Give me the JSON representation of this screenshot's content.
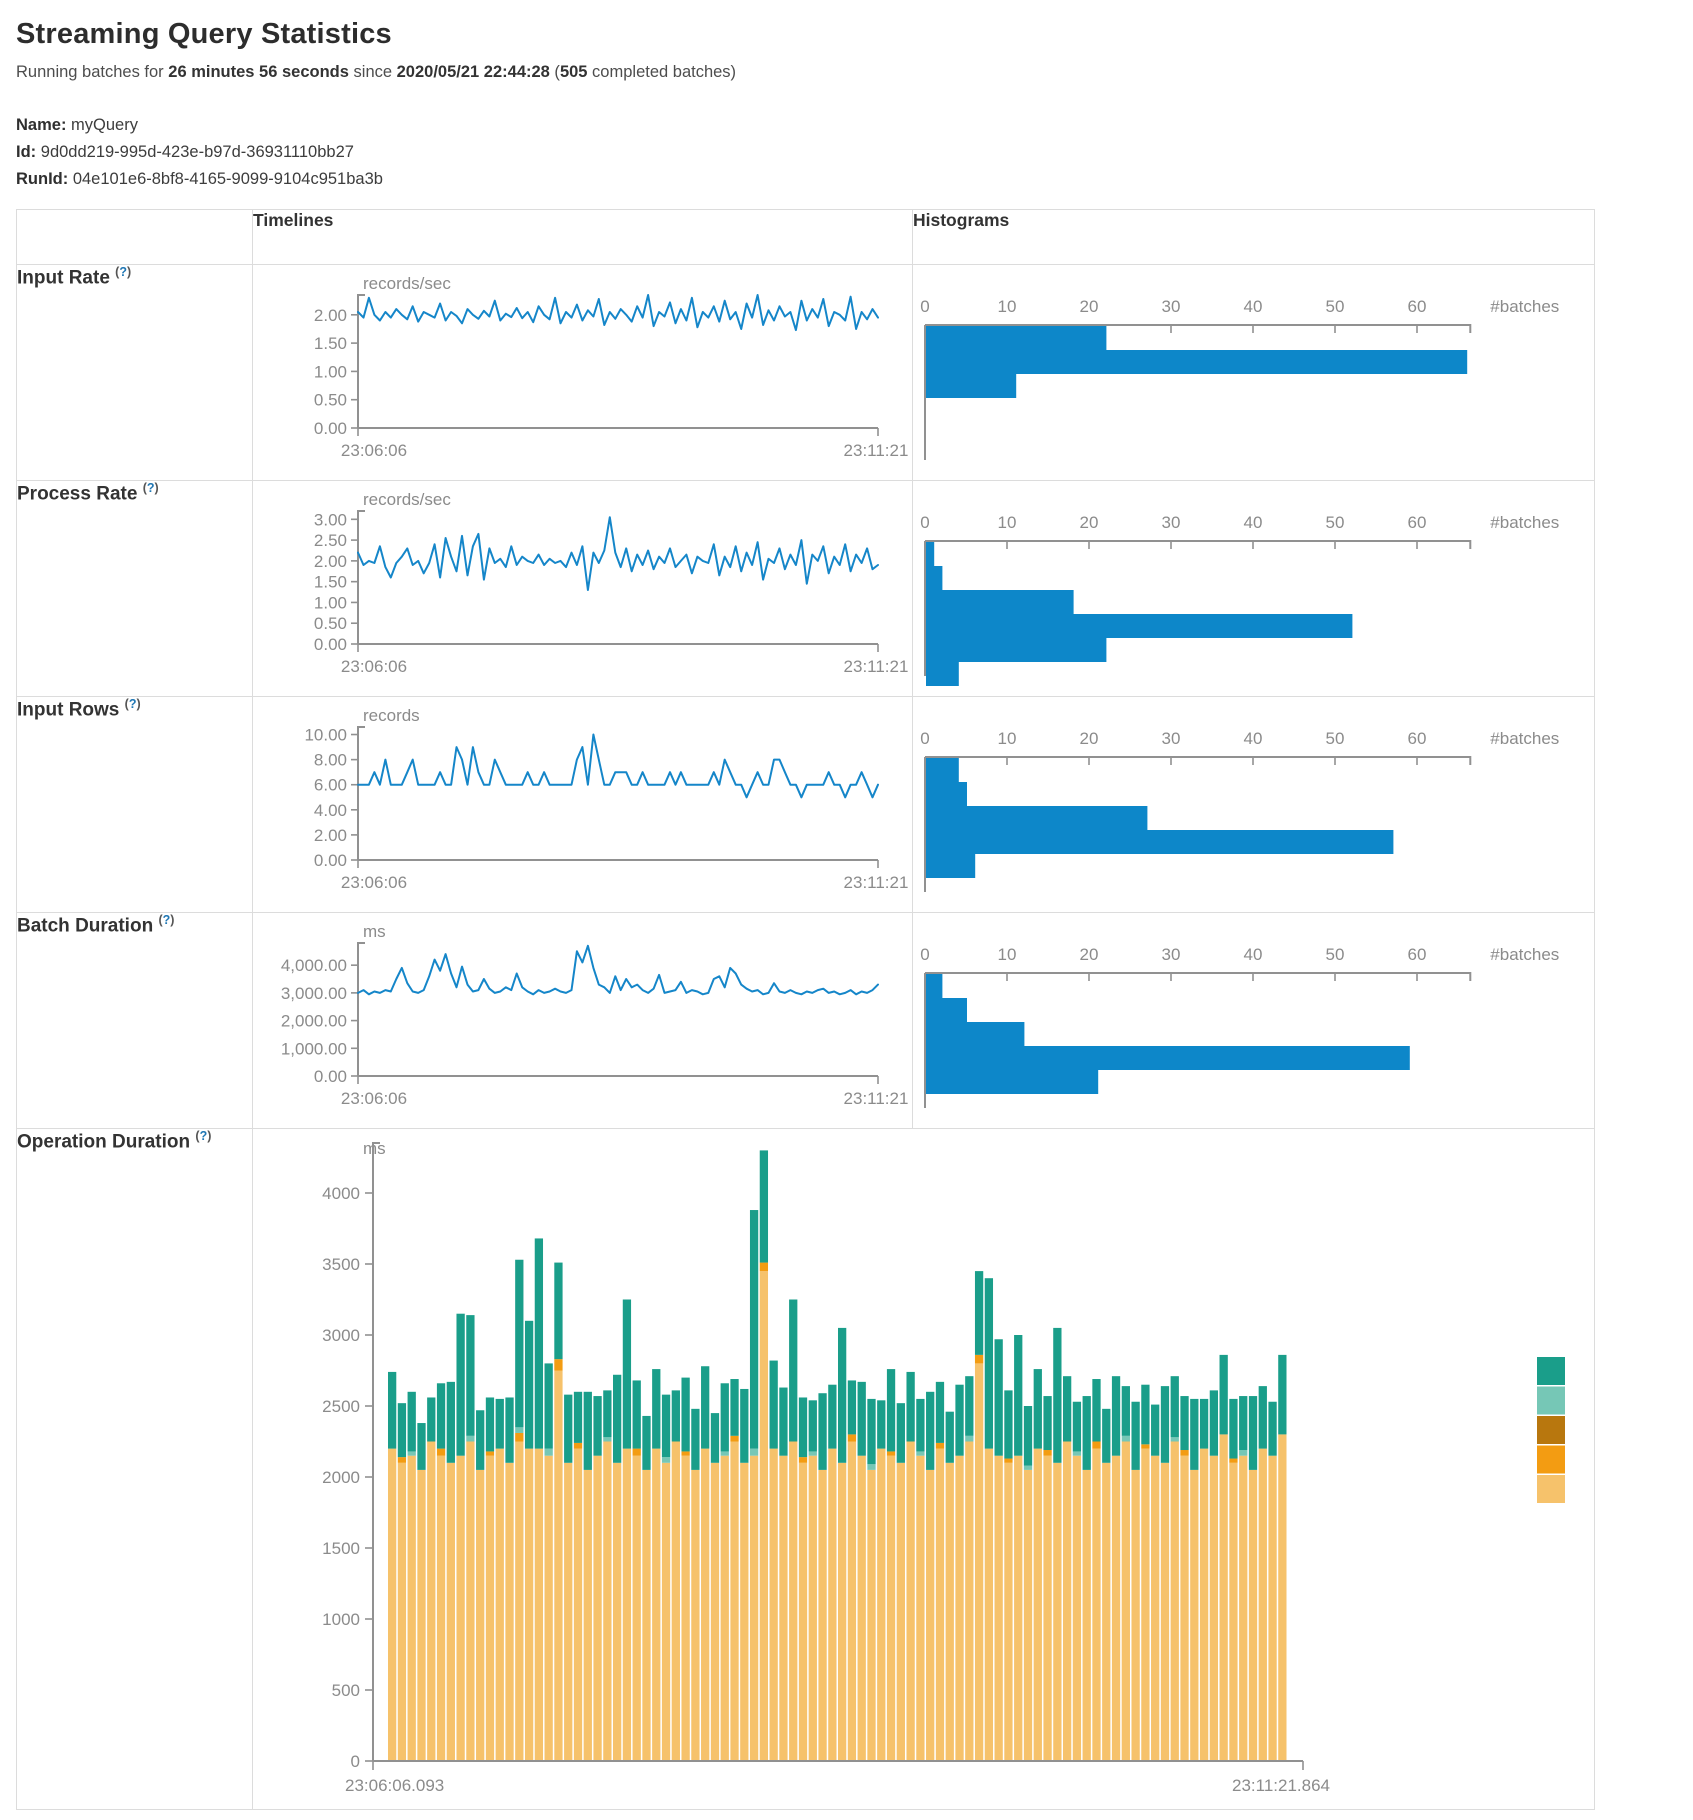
{
  "page": {
    "title": "Streaming Query Statistics",
    "subtitle": {
      "prefix": "Running batches for ",
      "duration": "26 minutes 56 seconds",
      "middle": " since ",
      "since": "2020/05/21 22:44:28",
      "open": " (",
      "batches": "505",
      "suffix": " completed batches)"
    },
    "meta": {
      "name_label": "Name:",
      "name": "myQuery",
      "id_label": "Id:",
      "id": "9d0dd219-995d-423e-b97d-36931110bb27",
      "runid_label": "RunId:",
      "runid": "04e101e6-8bf8-4165-9099-9104c951ba3b"
    }
  },
  "table": {
    "header": {
      "timelines": "Timelines",
      "histograms": "Histograms"
    },
    "help": {
      "open": "(",
      "mark": "?",
      "close": ")"
    },
    "rows": [
      {
        "label": "Input Rate"
      },
      {
        "label": "Process Rate"
      },
      {
        "label": "Input Rows"
      },
      {
        "label": "Batch Duration"
      },
      {
        "label": "Operation Duration"
      }
    ]
  },
  "colors": {
    "line": "#1586c9",
    "bar": "#0d87c9",
    "axis": "#919191",
    "tick_text": "#8b8b8b"
  },
  "chart_data": [
    {
      "id": "input-rate-timeline",
      "type": "line",
      "unit": "records/sec",
      "x_start": "23:06:06",
      "x_end": "23:11:21",
      "ymax": 2.35,
      "yticks": [
        [
          0,
          "0.00"
        ],
        [
          0.5,
          "0.50"
        ],
        [
          1,
          "1.00"
        ],
        [
          1.5,
          "1.50"
        ],
        [
          2,
          "2.00"
        ]
      ],
      "values": [
        2.05,
        1.95,
        2.3,
        2.0,
        1.9,
        2.05,
        1.95,
        2.1,
        2.0,
        1.92,
        2.15,
        1.88,
        2.05,
        2.0,
        1.95,
        2.2,
        1.9,
        2.05,
        1.98,
        1.85,
        2.1,
        2.0,
        1.93,
        2.07,
        1.97,
        2.25,
        1.9,
        2.02,
        1.96,
        2.12,
        1.94,
        2.05,
        1.87,
        2.15,
        2.0,
        1.92,
        2.3,
        1.85,
        2.05,
        1.95,
        2.18,
        1.9,
        2.08,
        1.97,
        2.28,
        1.82,
        2.05,
        1.93,
        2.1,
        2.0,
        1.88,
        2.15,
        1.95,
        2.35,
        1.8,
        2.05,
        1.97,
        2.22,
        1.85,
        2.1,
        1.9,
        2.3,
        1.78,
        2.05,
        1.95,
        2.15,
        1.88,
        2.25,
        1.92,
        2.05,
        1.75,
        2.2,
        1.95,
        2.35,
        1.82,
        2.08,
        1.9,
        2.15,
        1.97,
        2.05,
        1.73,
        2.25,
        1.9,
        2.1,
        1.95,
        2.28,
        1.8,
        2.05,
        2.0,
        1.9,
        2.32,
        1.75,
        2.05,
        1.92,
        2.1,
        1.95
      ]
    },
    {
      "id": "input-rate-histogram",
      "type": "hbar",
      "axis_label": "#batches",
      "xticks": [
        [
          0,
          "0"
        ],
        [
          10,
          "10"
        ],
        [
          20,
          "20"
        ],
        [
          30,
          "30"
        ],
        [
          40,
          "40"
        ],
        [
          50,
          "50"
        ],
        [
          60,
          "60"
        ]
      ],
      "bins": [
        22,
        66,
        11
      ]
    },
    {
      "id": "process-rate-timeline",
      "type": "line",
      "unit": "records/sec",
      "x_start": "23:06:06",
      "x_end": "23:11:21",
      "ymax": 3.2,
      "yticks": [
        [
          0,
          "0.00"
        ],
        [
          0.5,
          "0.50"
        ],
        [
          1,
          "1.00"
        ],
        [
          1.5,
          "1.50"
        ],
        [
          2,
          "2.00"
        ],
        [
          2.5,
          "2.50"
        ],
        [
          3,
          "3.00"
        ]
      ],
      "values": [
        2.2,
        1.9,
        2.0,
        1.95,
        2.35,
        1.85,
        1.6,
        1.95,
        2.1,
        2.3,
        1.9,
        2.0,
        1.7,
        1.95,
        2.4,
        1.6,
        2.55,
        2.1,
        1.75,
        2.6,
        1.65,
        2.35,
        2.65,
        1.55,
        2.3,
        1.95,
        2.05,
        1.85,
        2.35,
        1.9,
        2.1,
        2.0,
        1.95,
        2.15,
        1.9,
        2.05,
        1.95,
        2.0,
        1.85,
        2.2,
        1.9,
        2.35,
        1.3,
        2.2,
        1.95,
        2.25,
        3.05,
        2.2,
        1.85,
        2.3,
        1.75,
        2.15,
        1.9,
        2.25,
        1.8,
        2.1,
        1.95,
        2.3,
        1.85,
        2.0,
        2.15,
        1.7,
        2.1,
        2.0,
        1.95,
        2.4,
        1.65,
        2.1,
        1.85,
        2.35,
        1.75,
        2.2,
        1.9,
        2.45,
        1.55,
        2.05,
        1.95,
        2.3,
        1.8,
        2.15,
        1.9,
        2.5,
        1.45,
        2.15,
        2.0,
        2.35,
        1.7,
        2.1,
        1.9,
        2.4,
        1.75,
        2.15,
        1.95,
        2.3,
        1.8,
        1.9
      ]
    },
    {
      "id": "process-rate-histogram",
      "type": "hbar",
      "axis_label": "#batches",
      "xticks": [
        [
          0,
          "0"
        ],
        [
          10,
          "10"
        ],
        [
          20,
          "20"
        ],
        [
          30,
          "30"
        ],
        [
          40,
          "40"
        ],
        [
          50,
          "50"
        ],
        [
          60,
          "60"
        ]
      ],
      "bins": [
        1,
        2,
        18,
        52,
        22,
        4
      ]
    },
    {
      "id": "input-rows-timeline",
      "type": "line",
      "unit": "records",
      "x_start": "23:06:06",
      "x_end": "23:11:21",
      "ymax": 10.6,
      "yticks": [
        [
          0,
          "0.00"
        ],
        [
          2,
          "2.00"
        ],
        [
          4,
          "4.00"
        ],
        [
          6,
          "6.00"
        ],
        [
          8,
          "8.00"
        ],
        [
          10,
          "10.00"
        ]
      ],
      "values": [
        6,
        6,
        6,
        7,
        6,
        8,
        6,
        6,
        6,
        7,
        8,
        6,
        6,
        6,
        6,
        7,
        6,
        6,
        9,
        8,
        6,
        9,
        7,
        6,
        6,
        8,
        7,
        6,
        6,
        6,
        6,
        7,
        6,
        6,
        7,
        6,
        6,
        6,
        6,
        6,
        8,
        9,
        6,
        10,
        8,
        6,
        6,
        7,
        7,
        7,
        6,
        6,
        7,
        6,
        6,
        6,
        6,
        7,
        6,
        7,
        6,
        6,
        6,
        6,
        6,
        7,
        6,
        8,
        7,
        6,
        6,
        5,
        6,
        7,
        6,
        6,
        8,
        8,
        7,
        6,
        6,
        5,
        6,
        6,
        6,
        6,
        7,
        6,
        6,
        5,
        6,
        6,
        7,
        6,
        5,
        6
      ]
    },
    {
      "id": "input-rows-histogram",
      "type": "hbar",
      "axis_label": "#batches",
      "xticks": [
        [
          0,
          "0"
        ],
        [
          10,
          "10"
        ],
        [
          20,
          "20"
        ],
        [
          30,
          "30"
        ],
        [
          40,
          "40"
        ],
        [
          50,
          "50"
        ],
        [
          60,
          "60"
        ]
      ],
      "bins": [
        4,
        5,
        27,
        57,
        6
      ]
    },
    {
      "id": "batch-duration-timeline",
      "type": "line",
      "unit": "ms",
      "x_start": "23:06:06",
      "x_end": "23:11:21",
      "ymax": 4800,
      "yticks": [
        [
          0,
          "0.00"
        ],
        [
          1000,
          "1,000.00"
        ],
        [
          2000,
          "2,000.00"
        ],
        [
          3000,
          "3,000.00"
        ],
        [
          4000,
          "4,000.00"
        ]
      ],
      "values": [
        3000,
        3100,
        2950,
        3050,
        3000,
        3100,
        3050,
        3500,
        3900,
        3350,
        3050,
        3000,
        3100,
        3600,
        4200,
        3800,
        4400,
        3700,
        3200,
        3950,
        3300,
        3050,
        3100,
        3500,
        3150,
        3000,
        3050,
        3200,
        3100,
        3700,
        3200,
        3050,
        2950,
        3100,
        3000,
        3050,
        3150,
        3050,
        3000,
        3100,
        4500,
        4100,
        4700,
        3900,
        3300,
        3200,
        3000,
        3600,
        3100,
        3500,
        3200,
        3300,
        3100,
        3000,
        3150,
        3650,
        3000,
        3050,
        3100,
        3400,
        3000,
        3100,
        3050,
        2950,
        3000,
        3500,
        3600,
        3200,
        3900,
        3700,
        3300,
        3150,
        3050,
        3100,
        2950,
        3000,
        3350,
        3050,
        3000,
        3100,
        3000,
        2950,
        3050,
        3000,
        3100,
        3150,
        3000,
        3050,
        2950,
        3000,
        3100,
        2950,
        3050,
        3000,
        3100,
        3300
      ]
    },
    {
      "id": "batch-duration-histogram",
      "type": "hbar",
      "axis_label": "#batches",
      "xticks": [
        [
          0,
          "0"
        ],
        [
          10,
          "10"
        ],
        [
          20,
          "20"
        ],
        [
          30,
          "30"
        ],
        [
          40,
          "40"
        ],
        [
          50,
          "50"
        ],
        [
          60,
          "60"
        ]
      ],
      "bins": [
        2,
        5,
        12,
        59,
        21
      ]
    },
    {
      "id": "operation-duration-stacked",
      "type": "stacked",
      "unit": "ms",
      "x_start": "23:06:06.093",
      "x_end": "23:11:21.864",
      "yticks": [
        [
          0,
          "0"
        ],
        [
          500,
          "500"
        ],
        [
          1000,
          "1000"
        ],
        [
          1500,
          "1500"
        ],
        [
          2000,
          "2000"
        ],
        [
          2500,
          "2500"
        ],
        [
          3000,
          "3000"
        ],
        [
          3500,
          "3500"
        ],
        [
          4000,
          "4000"
        ]
      ],
      "series_colors": [
        "#f6c26b",
        "#f39c12",
        "#b8770e",
        "#76c7b6",
        "#1a9e8a"
      ],
      "legend_colors": [
        "#1a9e8a",
        "#76c7b6",
        "#b8770e",
        "#f39c12",
        "#f6c26b"
      ],
      "bars": [
        [
          2200,
          0,
          0,
          0,
          540
        ],
        [
          2100,
          40,
          0,
          0,
          380
        ],
        [
          2150,
          0,
          0,
          30,
          420
        ],
        [
          2050,
          0,
          0,
          0,
          330
        ],
        [
          2250,
          0,
          0,
          0,
          310
        ],
        [
          2150,
          50,
          0,
          0,
          460
        ],
        [
          2100,
          0,
          0,
          0,
          570
        ],
        [
          2150,
          0,
          0,
          0,
          1000
        ],
        [
          2250,
          0,
          0,
          40,
          850
        ],
        [
          2050,
          0,
          0,
          0,
          420
        ],
        [
          2150,
          30,
          0,
          0,
          380
        ],
        [
          2200,
          0,
          0,
          0,
          350
        ],
        [
          2100,
          0,
          0,
          0,
          460
        ],
        [
          2250,
          60,
          0,
          40,
          1180
        ],
        [
          2200,
          0,
          0,
          0,
          900
        ],
        [
          2200,
          0,
          0,
          0,
          1480
        ],
        [
          2150,
          0,
          0,
          50,
          600
        ],
        [
          2750,
          80,
          0,
          0,
          680
        ],
        [
          2100,
          0,
          0,
          0,
          480
        ],
        [
          2200,
          40,
          0,
          0,
          360
        ],
        [
          2050,
          0,
          0,
          0,
          550
        ],
        [
          2150,
          0,
          0,
          0,
          420
        ],
        [
          2250,
          0,
          0,
          30,
          330
        ],
        [
          2100,
          0,
          0,
          0,
          620
        ],
        [
          2200,
          0,
          0,
          0,
          1050
        ],
        [
          2150,
          50,
          0,
          0,
          480
        ],
        [
          2050,
          0,
          0,
          0,
          380
        ],
        [
          2200,
          0,
          0,
          0,
          560
        ],
        [
          2100,
          0,
          0,
          40,
          440
        ],
        [
          2250,
          0,
          0,
          0,
          360
        ],
        [
          2150,
          30,
          0,
          0,
          520
        ],
        [
          2050,
          0,
          0,
          0,
          430
        ],
        [
          2200,
          0,
          0,
          0,
          580
        ],
        [
          2100,
          0,
          0,
          0,
          350
        ],
        [
          2150,
          0,
          0,
          30,
          480
        ],
        [
          2250,
          40,
          0,
          0,
          400
        ],
        [
          2100,
          0,
          0,
          0,
          520
        ],
        [
          2150,
          0,
          0,
          50,
          1680
        ],
        [
          3450,
          60,
          0,
          0,
          790
        ],
        [
          2200,
          0,
          0,
          0,
          620
        ],
        [
          2150,
          0,
          0,
          0,
          480
        ],
        [
          2250,
          0,
          0,
          0,
          1000
        ],
        [
          2100,
          40,
          0,
          0,
          420
        ],
        [
          2150,
          0,
          0,
          30,
          360
        ],
        [
          2050,
          0,
          0,
          0,
          540
        ],
        [
          2200,
          0,
          0,
          0,
          450
        ],
        [
          2100,
          0,
          0,
          0,
          950
        ],
        [
          2250,
          50,
          0,
          0,
          380
        ],
        [
          2150,
          0,
          0,
          0,
          520
        ],
        [
          2050,
          0,
          0,
          40,
          460
        ],
        [
          2200,
          0,
          0,
          0,
          340
        ],
        [
          2150,
          30,
          0,
          0,
          580
        ],
        [
          2100,
          0,
          0,
          0,
          420
        ],
        [
          2250,
          0,
          0,
          0,
          490
        ],
        [
          2150,
          0,
          0,
          30,
          370
        ],
        [
          2050,
          0,
          0,
          0,
          550
        ],
        [
          2200,
          40,
          0,
          0,
          430
        ],
        [
          2100,
          0,
          0,
          0,
          360
        ],
        [
          2150,
          0,
          0,
          0,
          500
        ],
        [
          2250,
          0,
          0,
          40,
          420
        ],
        [
          2800,
          60,
          0,
          0,
          590
        ],
        [
          2200,
          0,
          0,
          0,
          1200
        ],
        [
          2150,
          0,
          0,
          0,
          820
        ],
        [
          2100,
          30,
          0,
          0,
          480
        ],
        [
          2150,
          0,
          0,
          0,
          850
        ],
        [
          2050,
          0,
          0,
          30,
          420
        ],
        [
          2200,
          0,
          0,
          0,
          560
        ],
        [
          2150,
          40,
          0,
          0,
          380
        ],
        [
          2100,
          0,
          0,
          0,
          950
        ],
        [
          2250,
          0,
          0,
          0,
          460
        ],
        [
          2150,
          0,
          0,
          30,
          350
        ],
        [
          2050,
          0,
          0,
          0,
          520
        ],
        [
          2200,
          50,
          0,
          0,
          440
        ],
        [
          2100,
          0,
          0,
          0,
          380
        ],
        [
          2150,
          0,
          0,
          0,
          560
        ],
        [
          2250,
          0,
          0,
          40,
          350
        ],
        [
          2050,
          0,
          0,
          0,
          480
        ],
        [
          2200,
          30,
          0,
          0,
          420
        ],
        [
          2150,
          0,
          0,
          0,
          360
        ],
        [
          2100,
          0,
          0,
          0,
          540
        ],
        [
          2250,
          0,
          0,
          30,
          430
        ],
        [
          2150,
          40,
          0,
          0,
          380
        ],
        [
          2050,
          0,
          0,
          0,
          500
        ],
        [
          2200,
          0,
          0,
          0,
          350
        ],
        [
          2150,
          0,
          0,
          0,
          460
        ],
        [
          2300,
          0,
          0,
          0,
          560
        ],
        [
          2100,
          30,
          0,
          0,
          420
        ],
        [
          2150,
          0,
          0,
          40,
          380
        ],
        [
          2050,
          0,
          0,
          0,
          520
        ],
        [
          2200,
          0,
          0,
          0,
          440
        ],
        [
          2150,
          0,
          0,
          0,
          380
        ],
        [
          2300,
          0,
          0,
          0,
          560
        ]
      ]
    }
  ]
}
